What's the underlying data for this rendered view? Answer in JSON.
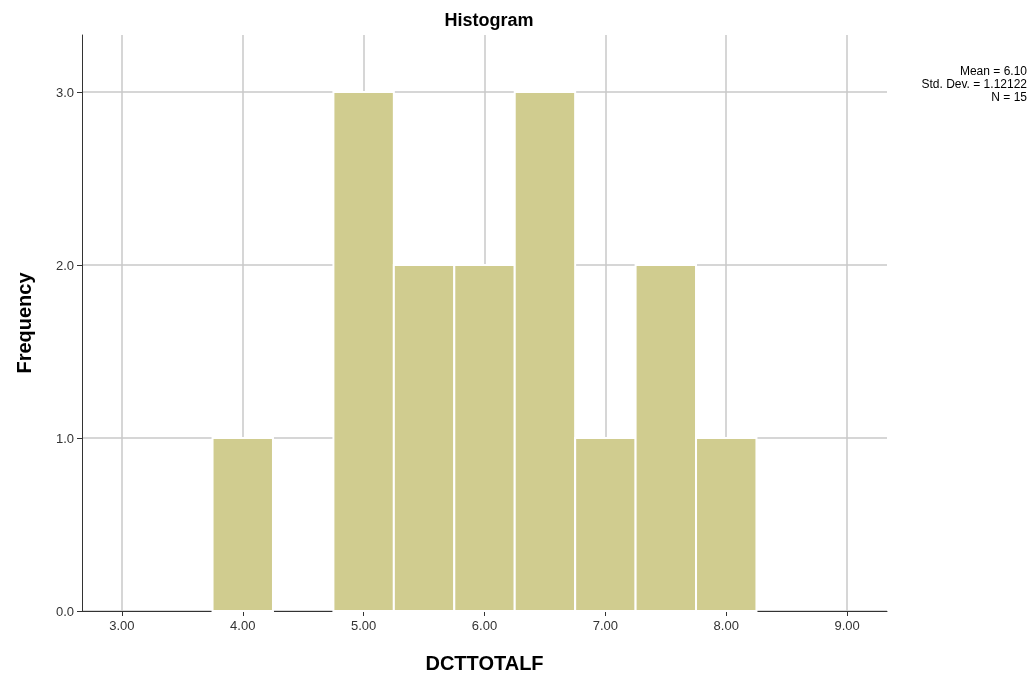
{
  "chart_data": {
    "type": "histogram",
    "title": "Histogram",
    "xlabel": "DCTTOTALF",
    "ylabel": "Frequency",
    "bins": [
      3.75,
      4.25,
      4.75,
      5.25,
      5.75,
      6.25,
      6.75,
      7.25,
      7.75,
      8.25
    ],
    "values": [
      1,
      0,
      3,
      2,
      2,
      3,
      1,
      2,
      1
    ],
    "color": "#d0cc8f",
    "xlim": [
      2.67,
      9.33
    ],
    "xticks": [
      {
        "value": 3,
        "label": "3.00"
      },
      {
        "value": 4,
        "label": "4.00"
      },
      {
        "value": 5,
        "label": "5.00"
      },
      {
        "value": 6,
        "label": "6.00"
      },
      {
        "value": 7,
        "label": "7.00"
      },
      {
        "value": 8,
        "label": "8.00"
      },
      {
        "value": 9,
        "label": "9.00"
      }
    ],
    "ylim": [
      0,
      3.33
    ],
    "yticks": [
      {
        "value": 0,
        "label": "0.0"
      },
      {
        "value": 1,
        "label": "1.0"
      },
      {
        "value": 2,
        "label": "2.0"
      },
      {
        "value": 3,
        "label": "3.0"
      }
    ],
    "grid": true,
    "annotations": [
      "Mean = 6.10",
      "Std. Dev. = 1.12122",
      "N = 15"
    ]
  }
}
